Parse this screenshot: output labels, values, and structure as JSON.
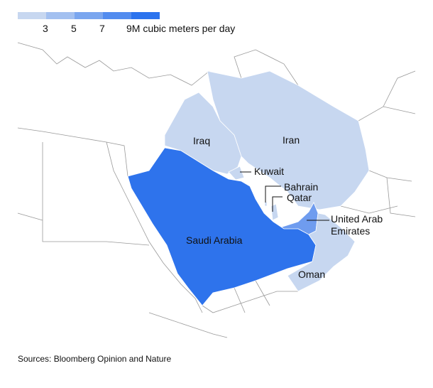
{
  "legend": {
    "colors": [
      "#c7d7f0",
      "#a3c0f0",
      "#7aa6ef",
      "#528cef",
      "#2b73ee"
    ],
    "ticks": [
      "3",
      "5",
      "7",
      "9M cubic meters per day"
    ]
  },
  "countries": [
    {
      "name": "Iraq",
      "label": "Iraq",
      "tier": 1,
      "color": "#c7d7f0"
    },
    {
      "name": "Iran",
      "label": "Iran",
      "tier": 1,
      "color": "#c7d7f0"
    },
    {
      "name": "Kuwait",
      "label": "Kuwait",
      "tier": 1,
      "color": "#c7d7f0"
    },
    {
      "name": "Bahrain",
      "label": "Bahrain",
      "tier": 1,
      "color": "#c7d7f0"
    },
    {
      "name": "Qatar",
      "label": "Qatar",
      "tier": 1,
      "color": "#c7d7f0"
    },
    {
      "name": "United Arab Emirates",
      "label_line1": "United Arab",
      "label_line2": "Emirates",
      "tier": 3,
      "color": "#6f9cef"
    },
    {
      "name": "Saudi Arabia",
      "label": "Saudi Arabia",
      "tier": 5,
      "color": "#2e73ec"
    },
    {
      "name": "Oman",
      "label": "Oman",
      "tier": 1,
      "color": "#c7d7f0"
    }
  ],
  "source": "Sources: Bloomberg Opinion and Nature"
}
